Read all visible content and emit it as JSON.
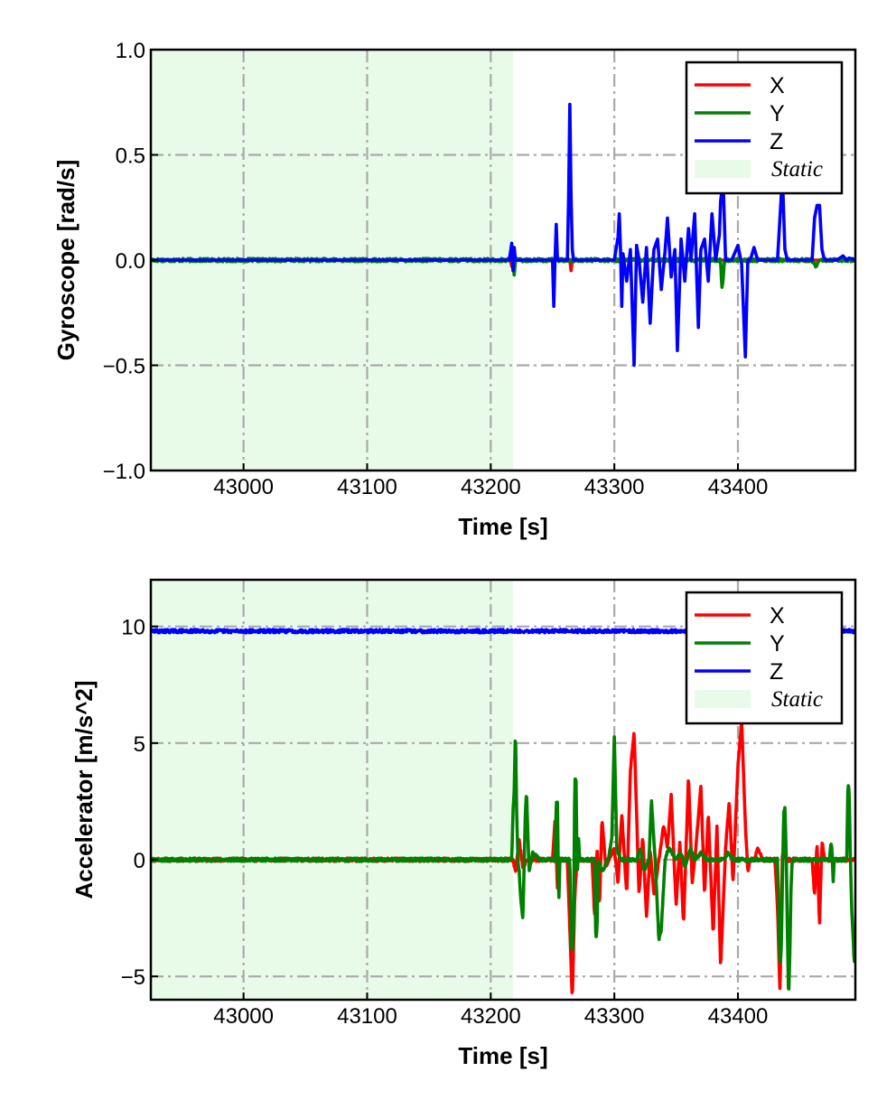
{
  "chart_data": [
    {
      "type": "line",
      "xlabel": "Time [s]",
      "ylabel": "Gyroscope [rad/s]",
      "xlim": [
        42925,
        43495
      ],
      "ylim": [
        -1.0,
        1.0
      ],
      "xticks": [
        43000,
        43100,
        43200,
        43300,
        43400
      ],
      "yticks": [
        -1.0,
        -0.5,
        0.0,
        0.5,
        1.0
      ],
      "ytick_labels": [
        "−1.0",
        "−0.5",
        "0.0",
        "0.5",
        "1.0"
      ],
      "grid": true,
      "legend_position": "top-right",
      "static_span": [
        42925,
        43218
      ],
      "legend": [
        "X",
        "Y",
        "Z",
        "Static"
      ],
      "series": [
        {
          "name": "X",
          "color": "#ff0000",
          "x": [
            42925,
            43216,
            43217,
            43218,
            43219,
            43220,
            43264,
            43265,
            43266,
            43495
          ],
          "y": [
            0.0,
            0.0,
            -0.03,
            0.02,
            -0.04,
            0.0,
            0.0,
            -0.05,
            0.0,
            0.0
          ]
        },
        {
          "name": "Y",
          "color": "#008000",
          "x": [
            42925,
            43216,
            43217,
            43218,
            43219,
            43220,
            43386,
            43387,
            43388,
            43389,
            43390,
            43460,
            43463,
            43466,
            43495
          ],
          "y": [
            0.0,
            0.0,
            0.04,
            -0.02,
            -0.07,
            0.0,
            0.0,
            -0.13,
            -0.1,
            0.0,
            0.0,
            0.0,
            -0.03,
            0.0,
            0.0
          ],
          "seed": 17
        },
        {
          "name": "Z",
          "color": "#0000ff",
          "x": [
            42925,
            43215,
            43217,
            43218,
            43219,
            43220,
            43250,
            43251,
            43252,
            43253,
            43254,
            43255,
            43262,
            43263,
            43264,
            43265,
            43266,
            43267,
            43300,
            43303,
            43304,
            43305,
            43306,
            43307,
            43310,
            43313,
            43316,
            43318,
            43320,
            43323,
            43326,
            43329,
            43332,
            43335,
            43338,
            43341,
            43343,
            43346,
            43349,
            43351,
            43354,
            43357,
            43360,
            43362,
            43365,
            43368,
            43370,
            43373,
            43376,
            43379,
            43382,
            43385,
            43386,
            43388,
            43390,
            43395,
            43400,
            43403,
            43406,
            43408,
            43410,
            43413,
            43416,
            43420,
            43432,
            43434,
            43436,
            43438,
            43440,
            43460,
            43462,
            43464,
            43466,
            43468,
            43470,
            43480,
            43485,
            43488,
            43490,
            43495
          ],
          "y": [
            0.0,
            0.0,
            0.08,
            -0.05,
            0.06,
            0.0,
            0.0,
            -0.22,
            0.0,
            0.17,
            0.0,
            0.0,
            0.0,
            0.3,
            0.74,
            0.3,
            0.05,
            0.0,
            0.0,
            0.11,
            0.22,
            0.05,
            -0.22,
            0.03,
            -0.1,
            0.05,
            -0.5,
            0.07,
            0.0,
            -0.2,
            0.06,
            -0.3,
            0.05,
            0.1,
            -0.14,
            0.04,
            0.2,
            -0.08,
            0.05,
            -0.43,
            0.1,
            -0.1,
            0.15,
            0.0,
            0.22,
            -0.32,
            0.05,
            0.1,
            -0.1,
            0.22,
            0.0,
            0.12,
            0.28,
            0.38,
            0.0,
            0.0,
            0.07,
            -0.02,
            -0.46,
            0.0,
            0.0,
            0.06,
            0.0,
            0.0,
            0.0,
            0.2,
            0.4,
            0.05,
            0.0,
            0.0,
            0.2,
            0.26,
            0.26,
            0.05,
            0.0,
            0.0,
            0.02,
            0.0,
            0.01,
            0.0
          ]
        }
      ]
    },
    {
      "type": "line",
      "xlabel": "Time [s]",
      "ylabel": "Accelerator [m/s^2]",
      "xlim": [
        42925,
        43495
      ],
      "ylim": [
        -6,
        12
      ],
      "xticks": [
        43000,
        43100,
        43200,
        43300,
        43400
      ],
      "yticks": [
        -5,
        0,
        5,
        10
      ],
      "ytick_labels": [
        "−5",
        "0",
        "5",
        "10"
      ],
      "grid": true,
      "legend_position": "top-right",
      "static_span": [
        42925,
        43218
      ],
      "legend": [
        "X",
        "Y",
        "Z",
        "Static"
      ],
      "series": [
        {
          "name": "X",
          "color": "#ff0000",
          "x": [
            42925,
            43218,
            43220,
            43223,
            43226,
            43230,
            43250,
            43252,
            43254,
            43256,
            43262,
            43264,
            43266,
            43268,
            43270,
            43282,
            43284,
            43286,
            43288,
            43290,
            43293,
            43296,
            43300,
            43303,
            43306,
            43310,
            43313,
            43316,
            43318,
            43320,
            43323,
            43326,
            43329,
            43332,
            43336,
            43340,
            43343,
            43346,
            43350,
            43353,
            43356,
            43360,
            43363,
            43366,
            43370,
            43373,
            43376,
            43380,
            43383,
            43386,
            43390,
            43393,
            43396,
            43400,
            43403,
            43406,
            43408,
            43410,
            43413,
            43416,
            43420,
            43430,
            43432,
            43434,
            43436,
            43440,
            43460,
            43462,
            43464,
            43466,
            43468,
            43470,
            43480,
            43495
          ],
          "y": [
            0.0,
            0.0,
            -0.5,
            0.8,
            -0.3,
            0.0,
            0.0,
            1.7,
            -1.3,
            0.0,
            0.0,
            -3.0,
            -6.0,
            -1.5,
            0.0,
            0.0,
            -2.5,
            0.5,
            -2.0,
            1.8,
            -0.3,
            0.0,
            0.5,
            -1.0,
            2.0,
            -1.5,
            3.8,
            5.5,
            2.0,
            -1.5,
            1.0,
            -2.5,
            0.5,
            -1.5,
            0.0,
            1.5,
            0.5,
            2.8,
            -2.0,
            0.8,
            -2.8,
            3.6,
            -1.0,
            0.5,
            3.2,
            -1.5,
            2.0,
            -3.2,
            1.5,
            -4.6,
            0.5,
            2.5,
            -1.0,
            4.0,
            6.0,
            1.5,
            -0.5,
            0.0,
            0.0,
            0.5,
            0.0,
            0.0,
            -2.0,
            -5.7,
            0.3,
            0.0,
            0.0,
            -1.5,
            0.7,
            -2.8,
            0.8,
            0.0,
            0.0,
            0.0
          ],
          "seed": 3
        },
        {
          "name": "Y",
          "color": "#008000",
          "x": [
            42925,
            43217,
            43218,
            43219,
            43220,
            43221,
            43222,
            43223,
            43224,
            43226,
            43228,
            43229,
            43231,
            43234,
            43240,
            43252,
            43253,
            43254,
            43255,
            43256,
            43264,
            43265,
            43266,
            43267,
            43268,
            43269,
            43270,
            43271,
            43272,
            43280,
            43284,
            43285,
            43286,
            43287,
            43290,
            43295,
            43298,
            43300,
            43302,
            43305,
            43310,
            43318,
            43321,
            43324,
            43328,
            43330,
            43333,
            43336,
            43338,
            43341,
            43344,
            43350,
            43354,
            43357,
            43362,
            43365,
            43370,
            43375,
            43380,
            43385,
            43388,
            43392,
            43396,
            43400,
            43405,
            43415,
            43420,
            43431,
            43432,
            43433,
            43434,
            43435,
            43436,
            43437,
            43438,
            43439,
            43440,
            43441,
            43442,
            43443,
            43444,
            43446,
            43460,
            43465,
            43470,
            43474,
            43475,
            43476,
            43477,
            43478,
            43479,
            43480,
            43481,
            43485,
            43488,
            43489,
            43490,
            43491,
            43492,
            43494,
            43495
          ],
          "y": [
            0.0,
            0.0,
            2.0,
            3.0,
            5.7,
            2.0,
            0.0,
            -0.5,
            -1.5,
            -2.6,
            2.0,
            2.9,
            -0.5,
            0.3,
            0.0,
            0.0,
            2.5,
            2.5,
            -2.0,
            0.0,
            0.0,
            -3.5,
            -4.0,
            -3.0,
            3.5,
            3.5,
            -1.0,
            1.0,
            0.0,
            0.0,
            0.0,
            -3.4,
            -3.0,
            0.0,
            -0.5,
            0.0,
            1.0,
            5.3,
            0.5,
            0.0,
            0.0,
            0.0,
            0.5,
            -0.5,
            0.0,
            2.6,
            0.0,
            -3.4,
            -3.0,
            0.0,
            0.5,
            0.0,
            0.3,
            -0.3,
            0.5,
            0.0,
            0.3,
            0.0,
            0.0,
            0.0,
            0.0,
            0.3,
            0.0,
            0.0,
            0.0,
            0.0,
            0.0,
            0.0,
            0.0,
            -2.0,
            -4.5,
            -4.0,
            -1.0,
            2.0,
            2.2,
            0.5,
            -3.0,
            -6.0,
            -4.0,
            -1.0,
            0.0,
            0.0,
            0.0,
            0.0,
            0.0,
            0.0,
            0.6,
            0.6,
            -1.0,
            0.0,
            0.0,
            0.0,
            0.0,
            0.0,
            0.0,
            3.2,
            3.0,
            0.0,
            -2.0,
            -4.3,
            -4.3
          ],
          "seed": 11
        },
        {
          "name": "Z",
          "color": "#0000ff",
          "x": [
            42925,
            43495
          ],
          "y": [
            9.8,
            9.8
          ],
          "seed": 29
        }
      ]
    }
  ],
  "colors": {
    "static_fill": "#e8fbe8",
    "grid": "#a9a9a9",
    "axes": "#000000"
  }
}
